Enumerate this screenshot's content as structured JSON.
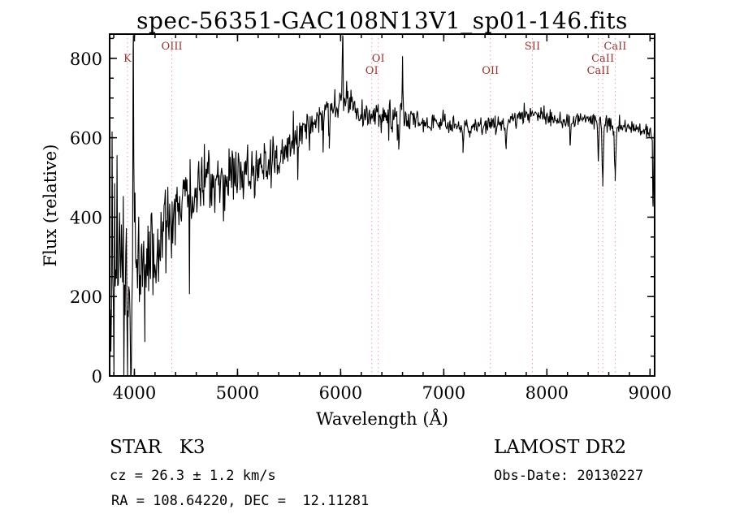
{
  "colors": {
    "background": "#ffffff",
    "trace": "#000000",
    "axis": "#000000",
    "marker_line": "#e8a0a0",
    "marker_label": "#993333"
  },
  "chart_data": {
    "type": "line",
    "title": "spec-56351-GAC108N13V1_sp01-146.fits",
    "xlabel": "Wavelength (Å)",
    "ylabel": "Flux (relative)",
    "xlim": [
      3760,
      9045
    ],
    "ylim": [
      0,
      861
    ],
    "xticks": [
      4000,
      5000,
      6000,
      7000,
      8000,
      9000
    ],
    "yticks": [
      0,
      200,
      400,
      600,
      800
    ],
    "x_minor_step": 200,
    "y_minor_step": 50,
    "grid": false,
    "legend": false,
    "line_markers": [
      {
        "label": "K",
        "wavelength": 3933,
        "row": 1
      },
      {
        "label": "OIII",
        "wavelength": 4363,
        "row": 0
      },
      {
        "label": "OI",
        "wavelength": 6365,
        "row": 1
      },
      {
        "label": "OI",
        "wavelength": 6302,
        "row": 2
      },
      {
        "label": "OII",
        "wavelength": 7452,
        "row": 2
      },
      {
        "label": "SII",
        "wavelength": 7860,
        "row": 0
      },
      {
        "label": "CaII",
        "wavelength": 8662,
        "row": 0
      },
      {
        "label": "CaII",
        "wavelength": 8542,
        "row": 1
      },
      {
        "label": "CaII",
        "wavelength": 8498,
        "row": 2
      }
    ],
    "continuum_points": [
      [
        3760,
        250,
        130
      ],
      [
        3800,
        270,
        115
      ],
      [
        3850,
        280,
        105
      ],
      [
        3900,
        295,
        100
      ],
      [
        3960,
        300,
        95
      ],
      [
        4000,
        310,
        85
      ],
      [
        4050,
        320,
        80
      ],
      [
        4100,
        330,
        75
      ],
      [
        4150,
        340,
        70
      ],
      [
        4200,
        355,
        65
      ],
      [
        4250,
        370,
        62
      ],
      [
        4300,
        385,
        58
      ],
      [
        4350,
        400,
        55
      ],
      [
        4400,
        420,
        52
      ],
      [
        4450,
        435,
        50
      ],
      [
        4500,
        450,
        47
      ],
      [
        4550,
        460,
        45
      ],
      [
        4600,
        470,
        43
      ],
      [
        4650,
        478,
        42
      ],
      [
        4700,
        483,
        41
      ],
      [
        4750,
        488,
        40
      ],
      [
        4800,
        492,
        39
      ],
      [
        4850,
        497,
        38
      ],
      [
        4900,
        502,
        37
      ],
      [
        4950,
        507,
        36
      ],
      [
        5000,
        512,
        35
      ],
      [
        5050,
        515,
        33
      ],
      [
        5100,
        518,
        32
      ],
      [
        5150,
        520,
        31
      ],
      [
        5200,
        523,
        30
      ],
      [
        5250,
        527,
        30
      ],
      [
        5300,
        532,
        29
      ],
      [
        5350,
        542,
        28
      ],
      [
        5400,
        554,
        28
      ],
      [
        5450,
        566,
        27
      ],
      [
        5500,
        580,
        26
      ],
      [
        5550,
        593,
        26
      ],
      [
        5600,
        606,
        25
      ],
      [
        5650,
        619,
        25
      ],
      [
        5700,
        632,
        24
      ],
      [
        5750,
        646,
        24
      ],
      [
        5800,
        658,
        23
      ],
      [
        5850,
        668,
        23
      ],
      [
        5900,
        676,
        23
      ],
      [
        5950,
        682,
        22
      ],
      [
        6000,
        688,
        22
      ],
      [
        6050,
        690,
        22
      ],
      [
        6100,
        683,
        21
      ],
      [
        6150,
        673,
        20
      ],
      [
        6200,
        665,
        20
      ],
      [
        6250,
        659,
        19
      ],
      [
        6300,
        655,
        19
      ],
      [
        6350,
        654,
        18
      ],
      [
        6400,
        654,
        18
      ],
      [
        6450,
        652,
        17
      ],
      [
        6500,
        650,
        17
      ],
      [
        6550,
        650,
        17
      ],
      [
        6600,
        649,
        16
      ],
      [
        6650,
        647,
        16
      ],
      [
        6700,
        645,
        16
      ],
      [
        6750,
        642,
        15
      ],
      [
        6800,
        640,
        15
      ],
      [
        6850,
        639,
        15
      ],
      [
        6900,
        638,
        14
      ],
      [
        6950,
        636,
        14
      ],
      [
        7000,
        635,
        14
      ],
      [
        7050,
        633,
        14
      ],
      [
        7100,
        631,
        13
      ],
      [
        7150,
        629,
        13
      ],
      [
        7200,
        627,
        13
      ],
      [
        7250,
        626,
        13
      ],
      [
        7300,
        625,
        13
      ],
      [
        7350,
        626,
        13
      ],
      [
        7400,
        628,
        13
      ],
      [
        7450,
        630,
        12
      ],
      [
        7500,
        633,
        12
      ],
      [
        7550,
        637,
        12
      ],
      [
        7600,
        641,
        12
      ],
      [
        7650,
        647,
        12
      ],
      [
        7700,
        652,
        12
      ],
      [
        7750,
        657,
        12
      ],
      [
        7800,
        661,
        12
      ],
      [
        7850,
        663,
        12
      ],
      [
        7900,
        662,
        12
      ],
      [
        7950,
        658,
        11
      ],
      [
        8000,
        653,
        11
      ],
      [
        8050,
        649,
        11
      ],
      [
        8100,
        646,
        11
      ],
      [
        8150,
        645,
        11
      ],
      [
        8200,
        645,
        11
      ],
      [
        8250,
        645,
        11
      ],
      [
        8300,
        646,
        11
      ],
      [
        8350,
        647,
        10
      ],
      [
        8400,
        648,
        10
      ],
      [
        8450,
        646,
        10
      ],
      [
        8500,
        642,
        10
      ],
      [
        8550,
        640,
        10
      ],
      [
        8600,
        639,
        10
      ],
      [
        8650,
        635,
        10
      ],
      [
        8700,
        631,
        10
      ],
      [
        8750,
        629,
        10
      ],
      [
        8800,
        627,
        10
      ],
      [
        8850,
        624,
        10
      ],
      [
        8900,
        621,
        11
      ],
      [
        8950,
        618,
        11
      ],
      [
        9000,
        614,
        12
      ],
      [
        9045,
        610,
        13
      ]
    ],
    "features": [
      [
        3935,
        -272,
        6
      ],
      [
        3968,
        -240,
        6
      ],
      [
        3990,
        530,
        3
      ],
      [
        4102,
        -95,
        7
      ],
      [
        4227,
        -75,
        5
      ],
      [
        4305,
        -65,
        6
      ],
      [
        4861,
        -60,
        6
      ],
      [
        5170,
        -55,
        6
      ],
      [
        5890,
        -75,
        5
      ],
      [
        6020,
        175,
        4
      ],
      [
        6563,
        -65,
        5
      ],
      [
        6600,
        140,
        3
      ],
      [
        7186,
        -45,
        6
      ],
      [
        7605,
        -60,
        8
      ],
      [
        8227,
        -45,
        5
      ],
      [
        8498,
        -95,
        5
      ],
      [
        8542,
        -158,
        6
      ],
      [
        8662,
        -128,
        6
      ],
      [
        9030,
        -190,
        4
      ]
    ],
    "seed": 56351,
    "sample_step": 6
  },
  "footer": {
    "class_label": "STAR   K3",
    "survey": "LAMOST DR2",
    "cz": "cz = 26.3 ± 1.2 km/s",
    "obs_date": "Obs-Date: 20130227",
    "radec": "RA = 108.64220, DEC =  12.11281"
  }
}
